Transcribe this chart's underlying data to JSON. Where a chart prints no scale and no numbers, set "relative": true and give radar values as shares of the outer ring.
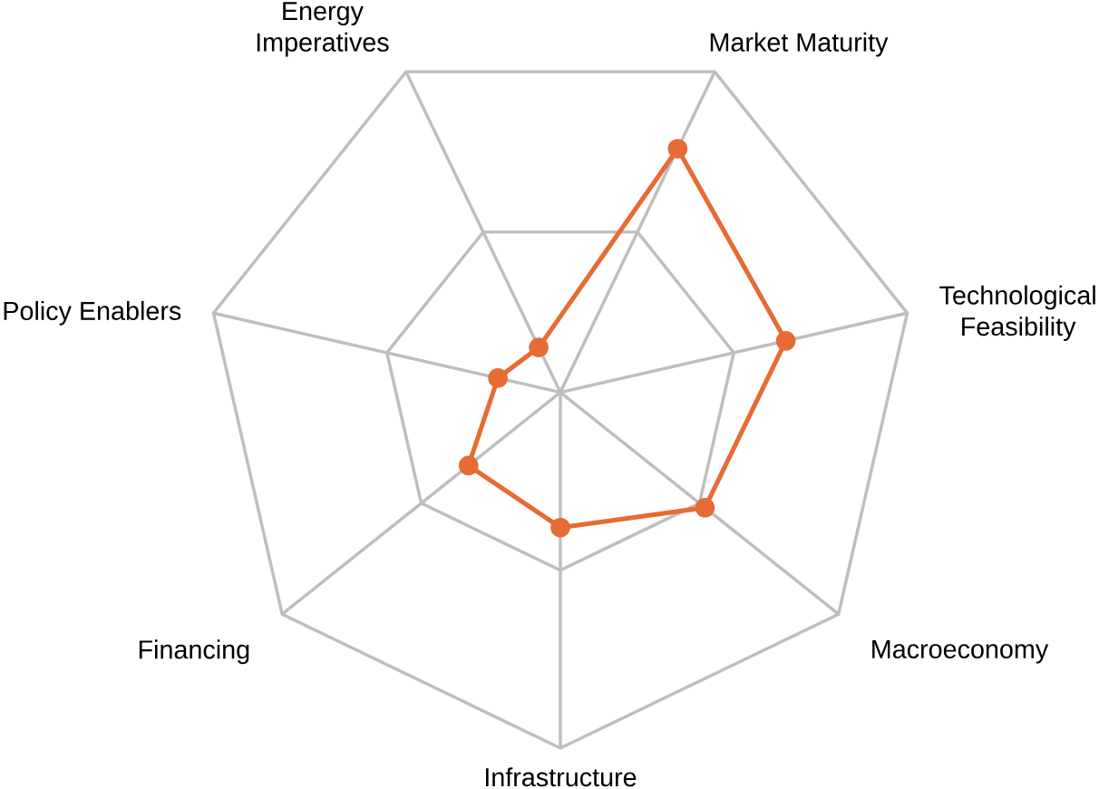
{
  "chart_data": {
    "type": "radar",
    "relative": true,
    "grid": true,
    "marker": "circle",
    "line_style": "solid",
    "categories": [
      "Market Maturity",
      "Technological Feasibility",
      "Macroeconomy",
      "Infrastructure",
      "Financing",
      "Policy Enablers",
      "Energy Imperatives"
    ],
    "series": [
      {
        "color": "#e66b35",
        "values": [
          0.76,
          0.65,
          0.52,
          0.38,
          0.33,
          0.18,
          0.14
        ]
      }
    ]
  }
}
